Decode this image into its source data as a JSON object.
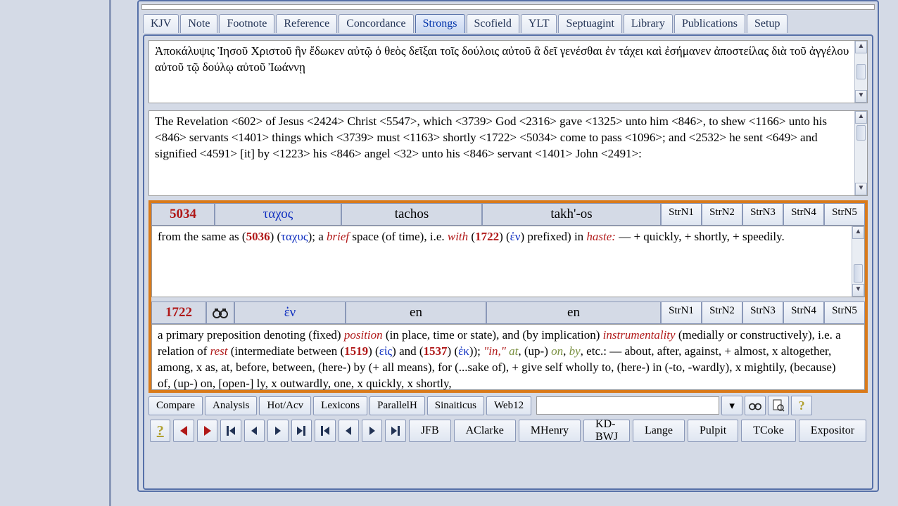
{
  "tabs": {
    "items": [
      "KJV",
      "Note",
      "Footnote",
      "Reference",
      "Concordance",
      "Strongs",
      "Scofield",
      "YLT",
      "Septuagint",
      "Library",
      "Publications",
      "Setup"
    ],
    "active_index": 5
  },
  "greek_text": "Ἀποκάλυψις Ἰησοῦ Χριστοῦ ἣν ἔδωκεν αὐτῷ ὁ θεὸς δεῖξαι τοῖς δούλοις αὐτοῦ ἃ δεῖ γενέσθαι ἐν τάχει καὶ ἐσήμανεν ἀποστείλας διὰ τοῦ ἀγγέλου αὐτοῦ τῷ δούλῳ αὐτοῦ Ἰωάννῃ",
  "interlinear": "The Revelation <602> of Jesus <2424> Christ <5547>, which <3739> God <2316> gave <1325> unto him <846>, to shew <1166> unto his <846> servants <1401> things which <3739> must <1163> shortly <1722> <5034> come to pass <1096>; and <2532> he sent <649> and signified <4591> [it] by <1223> his <846> angel <32> unto his <846> servant <1401> John <2491>:",
  "entry1": {
    "number": "5034",
    "greek": "ταχος",
    "translit": "tachos",
    "pronounce": "takh'-os",
    "strn": [
      "StrN1",
      "StrN2",
      "StrN3",
      "StrN4",
      "StrN5"
    ],
    "def_pre": "from the same as (",
    "ref1_num": "5036",
    "ref1_gk": "ταχυς",
    "def_mid1": "); a ",
    "ital1": "brief",
    "def_mid2": " space (of time), i.e. ",
    "ital2": "with",
    "def_mid3": " (",
    "ref2_num": "1722",
    "def_mid4": ") (",
    "ref2_gk": "ἐν",
    "def_mid5": ") prefixed) in ",
    "ital3": "haste:",
    "def_tail": " — + quickly, + shortly, + speedily."
  },
  "entry2": {
    "number": "1722",
    "greek": "ἐν",
    "translit": "en",
    "pronounce": "en",
    "strn": [
      "StrN1",
      "StrN2",
      "StrN3",
      "StrN4",
      "StrN5"
    ],
    "p1": "a primary preposition denoting (fixed) ",
    "ir1": "position",
    "p2": " (in place, time or state), and (by implication) ",
    "ir2": "instrumentality",
    "p3": " (medially or constructively), i.e. a relation of ",
    "ir3": "rest",
    "p4": " (intermediate between (",
    "n1": "1519",
    "p5": ") (",
    "g1": "εἰς",
    "p6": ") and (",
    "n2": "1537",
    "p7": ") (",
    "g2": "ἐκ",
    "p8": ")); ",
    "q1": "\"in,\"",
    "p9": " ",
    "ig1": "at",
    "p10": ", (up-) ",
    "ig2": "on",
    "p11": ", ",
    "ig3": "by",
    "p12": ", etc.: — about, after, against, + almost, x altogether, among, x as, at, before, between, (here-) by (+ all means), for (...sake of), + give self wholly to, (here-) in (-to, -wardly), x mightily, (because) of, (up-) on, [open-] ly, x outwardly, one, x quickly, x shortly,"
  },
  "bottom_tabs": [
    "Compare",
    "Analysis",
    "Hot/Acv",
    "Lexicons",
    "ParallelH",
    "Sinaiticus",
    "Web12"
  ],
  "commentaries": [
    "JFB",
    "AClarke",
    "MHenry",
    "KD-BWJ",
    "Lange",
    "Pulpit",
    "TCoke",
    "Expositor"
  ],
  "icons": {
    "help": "?",
    "bino": "🔍",
    "page": "📄",
    "helpq": "?"
  }
}
